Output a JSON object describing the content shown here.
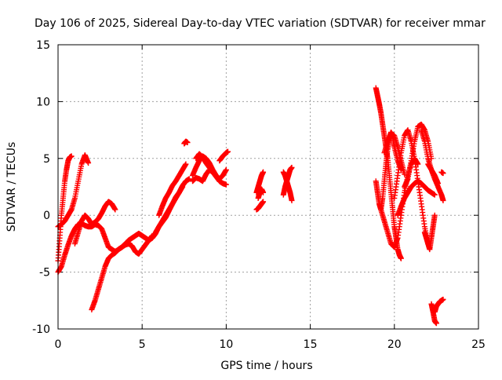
{
  "chart_data": {
    "type": "scatter",
    "title": "Day 106 of 2025, Sidereal Day-to-day VTEC variation (SDTVAR) for receiver mmar",
    "xlabel": "GPS time / hours",
    "ylabel": "SDTVAR / TECUs",
    "xlim": [
      0,
      25
    ],
    "ylim": [
      -10,
      15
    ],
    "xticks": [
      "0",
      "5",
      "10",
      "15",
      "20",
      "25"
    ],
    "yticks": [
      "-10",
      "-5",
      "0",
      "5",
      "10",
      "15"
    ],
    "grid": true,
    "legend": "none",
    "marker": "+",
    "color": "#ff0000",
    "series": [
      {
        "x": [
          0.0,
          0.2,
          0.4,
          0.6,
          0.8,
          1.0,
          1.2,
          1.4,
          1.6,
          1.8
        ],
        "y": [
          -5.0,
          -4.5,
          -3.5,
          -2.6,
          -1.8,
          -1.2,
          -0.8,
          -0.7,
          -0.9,
          -1.0
        ]
      },
      {
        "x": [
          0.0,
          0.1,
          0.2,
          0.3,
          0.4,
          0.5,
          0.6,
          0.7,
          0.8
        ],
        "y": [
          -4.0,
          -2.0,
          0.0,
          1.5,
          3.0,
          4.0,
          4.8,
          5.1,
          5.2
        ]
      },
      {
        "x": [
          0.0,
          0.2,
          0.4,
          0.6,
          0.8
        ],
        "y": [
          -1.0,
          -0.8,
          -0.5,
          0.0,
          0.5
        ]
      },
      {
        "x": [
          0.8,
          1.0,
          1.2,
          1.4,
          1.6,
          1.8
        ],
        "y": [
          0.5,
          1.5,
          3.0,
          4.5,
          5.3,
          4.6
        ]
      },
      {
        "x": [
          1.0,
          1.2,
          1.4,
          1.6,
          1.8,
          2.0,
          2.2,
          2.4,
          2.6,
          2.8,
          3.0,
          3.2,
          3.4
        ],
        "y": [
          -2.5,
          -1.5,
          -0.5,
          0.0,
          -0.3,
          -0.8,
          -0.6,
          -0.3,
          0.2,
          0.8,
          1.2,
          1.0,
          0.5
        ]
      },
      {
        "x": [
          1.8,
          2.0,
          2.2,
          2.4,
          2.6,
          2.8,
          3.0,
          3.2,
          3.4,
          3.6,
          3.8,
          4.0,
          4.2,
          4.4,
          4.6,
          4.8,
          5.0,
          5.2,
          5.4,
          5.6,
          5.8
        ],
        "y": [
          -1.0,
          -1.0,
          -0.8,
          -0.9,
          -1.2,
          -2.0,
          -2.8,
          -3.0,
          -3.2,
          -3.0,
          -2.8,
          -2.5,
          -2.2,
          -2.0,
          -1.8,
          -1.6,
          -1.8,
          -2.0,
          -2.2,
          -2.0,
          -1.6
        ]
      },
      {
        "x": [
          2.0,
          2.2,
          2.4,
          2.6,
          2.8,
          3.0,
          3.2,
          3.4,
          3.6,
          3.8,
          4.0,
          4.2,
          4.4,
          4.6,
          4.8,
          5.0,
          5.2,
          5.4,
          5.6
        ],
        "y": [
          -8.3,
          -7.5,
          -6.5,
          -5.5,
          -4.5,
          -3.8,
          -3.5,
          -3.3,
          -3.0,
          -2.8,
          -2.6,
          -2.5,
          -2.7,
          -3.2,
          -3.4,
          -3.0,
          -2.6,
          -2.2,
          -1.8
        ]
      },
      {
        "x": [
          5.8,
          6.0,
          6.2,
          6.4,
          6.6,
          6.8,
          7.0,
          7.2,
          7.4
        ],
        "y": [
          -1.5,
          -1.0,
          -0.5,
          0.0,
          0.5,
          1.0,
          1.6,
          2.0,
          2.5
        ]
      },
      {
        "x": [
          6.0,
          6.2,
          6.4,
          6.6,
          6.8,
          7.0,
          7.2,
          7.4,
          7.6
        ],
        "y": [
          0.0,
          0.8,
          1.5,
          2.0,
          2.6,
          3.0,
          3.5,
          4.0,
          4.5
        ]
      },
      {
        "x": [
          5.6,
          5.8,
          6.0,
          6.2,
          6.4,
          6.6,
          6.8,
          7.0,
          7.2,
          7.4,
          7.6,
          7.8
        ],
        "y": [
          -2.0,
          -1.6,
          -1.0,
          -0.6,
          -0.2,
          0.4,
          1.0,
          1.5,
          2.0,
          2.6,
          3.0,
          3.2
        ]
      },
      {
        "x": [
          7.5,
          7.6,
          7.7
        ],
        "y": [
          6.3,
          6.5,
          6.4
        ]
      },
      {
        "x": [
          8.0,
          8.2,
          8.4,
          8.6,
          8.8,
          9.0,
          9.2,
          9.4,
          9.6,
          9.8,
          10.0
        ],
        "y": [
          3.5,
          4.2,
          4.8,
          5.2,
          5.0,
          4.6,
          4.0,
          3.5,
          3.2,
          3.5,
          4.0
        ]
      },
      {
        "x": [
          8.0,
          8.2,
          8.4,
          8.6,
          8.8,
          9.0,
          9.2,
          9.4,
          9.6,
          9.8,
          10.0
        ],
        "y": [
          3.0,
          3.3,
          3.2,
          3.0,
          3.6,
          4.0,
          3.8,
          3.4,
          3.0,
          2.8,
          2.7
        ]
      },
      {
        "x": [
          8.2,
          8.4,
          8.6,
          8.8,
          9.0,
          9.2,
          9.4
        ],
        "y": [
          5.0,
          5.4,
          5.1,
          4.6,
          4.2,
          3.8,
          3.4
        ]
      },
      {
        "x": [
          9.6,
          9.8,
          10.0,
          10.1
        ],
        "y": [
          4.8,
          5.2,
          5.5,
          5.6
        ]
      },
      {
        "x": [
          11.8,
          11.9,
          12.0,
          12.1,
          12.2
        ],
        "y": [
          0.5,
          0.6,
          0.8,
          1.0,
          1.2
        ]
      },
      {
        "x": [
          11.8,
          11.9,
          12.0,
          12.1,
          12.2
        ],
        "y": [
          2.0,
          2.5,
          3.0,
          3.5,
          3.8
        ]
      },
      {
        "x": [
          11.9,
          12.0,
          12.1,
          12.2
        ],
        "y": [
          1.5,
          2.0,
          2.3,
          2.0
        ]
      },
      {
        "x": [
          13.4,
          13.5,
          13.6,
          13.7,
          13.8,
          13.9
        ],
        "y": [
          1.8,
          2.5,
          3.0,
          3.5,
          4.0,
          4.2
        ]
      },
      {
        "x": [
          13.4,
          13.5,
          13.6,
          13.7,
          13.8,
          13.9
        ],
        "y": [
          3.8,
          3.5,
          3.0,
          2.5,
          2.0,
          1.3
        ]
      },
      {
        "x": [
          18.9,
          19.0,
          19.1,
          19.2,
          19.3,
          19.4,
          19.5,
          19.6,
          19.7,
          19.8,
          19.9,
          20.0,
          20.1,
          20.2,
          20.3,
          20.4
        ],
        "y": [
          11.2,
          10.5,
          9.8,
          9.0,
          8.0,
          7.0,
          6.0,
          5.0,
          3.5,
          2.0,
          0.5,
          -1.0,
          -2.0,
          -3.0,
          -3.5,
          -3.8
        ]
      },
      {
        "x": [
          18.9,
          19.0,
          19.1,
          19.2,
          19.3,
          19.4,
          19.5,
          19.6,
          19.7,
          19.8,
          19.9,
          20.0,
          20.2,
          20.4
        ],
        "y": [
          3.0,
          2.0,
          1.0,
          0.5,
          1.5,
          3.0,
          4.5,
          5.8,
          6.8,
          7.3,
          7.0,
          6.0,
          4.8,
          4.0
        ]
      },
      {
        "x": [
          19.2,
          19.4,
          19.6,
          19.8,
          20.0,
          20.2,
          20.4,
          20.6,
          20.8,
          21.0,
          21.2,
          21.4
        ],
        "y": [
          0.5,
          -0.5,
          -1.5,
          -2.5,
          -2.8,
          -2.0,
          0.0,
          2.0,
          3.5,
          4.5,
          5.0,
          4.5
        ]
      },
      {
        "x": [
          19.4,
          19.6,
          19.8,
          20.0,
          20.2,
          20.4,
          20.6
        ],
        "y": [
          5.5,
          6.5,
          7.2,
          7.0,
          6.0,
          4.8,
          3.6
        ]
      },
      {
        "x": [
          20.0,
          20.2,
          20.4,
          20.6,
          20.8,
          21.0,
          21.2,
          21.4,
          21.6,
          21.8,
          22.0
        ],
        "y": [
          1.5,
          3.5,
          5.5,
          7.0,
          7.5,
          6.5,
          5.0,
          3.0,
          1.0,
          -1.0,
          -2.5
        ]
      },
      {
        "x": [
          20.6,
          20.8,
          21.0,
          21.2,
          21.4,
          21.6,
          21.8,
          22.0,
          22.2
        ],
        "y": [
          2.5,
          3.2,
          4.8,
          6.5,
          7.8,
          8.0,
          7.5,
          6.5,
          5.0
        ]
      },
      {
        "x": [
          20.2,
          20.4,
          20.6,
          20.8,
          21.0,
          21.2,
          21.4,
          21.6,
          21.8,
          22.0,
          22.2,
          22.4
        ],
        "y": [
          0.0,
          0.8,
          1.5,
          2.0,
          2.5,
          2.8,
          3.0,
          2.8,
          2.5,
          2.2,
          2.0,
          1.8
        ]
      },
      {
        "x": [
          21.6,
          21.8,
          22.0,
          22.2,
          22.4,
          22.6,
          22.8,
          22.9
        ],
        "y": [
          7.5,
          6.5,
          5.0,
          4.0,
          3.2,
          2.5,
          1.8,
          1.3
        ]
      },
      {
        "x": [
          22.0,
          22.2,
          22.4,
          22.6
        ],
        "y": [
          4.5,
          4.0,
          3.5,
          2.8
        ]
      },
      {
        "x": [
          22.8,
          22.9
        ],
        "y": [
          3.8,
          3.7
        ]
      },
      {
        "x": [
          21.8,
          21.9,
          22.0,
          22.1,
          22.2,
          22.3,
          22.4
        ],
        "y": [
          -1.5,
          -2.0,
          -2.5,
          -3.0,
          -2.0,
          -1.0,
          0.0
        ]
      },
      {
        "x": [
          22.2,
          22.3,
          22.4,
          22.5
        ],
        "y": [
          -7.8,
          -8.5,
          -9.3,
          -9.5
        ]
      },
      {
        "x": [
          22.4,
          22.5,
          22.6,
          22.7,
          22.8,
          22.9
        ],
        "y": [
          -8.5,
          -8.0,
          -7.8,
          -7.6,
          -7.5,
          -7.4
        ]
      }
    ]
  }
}
